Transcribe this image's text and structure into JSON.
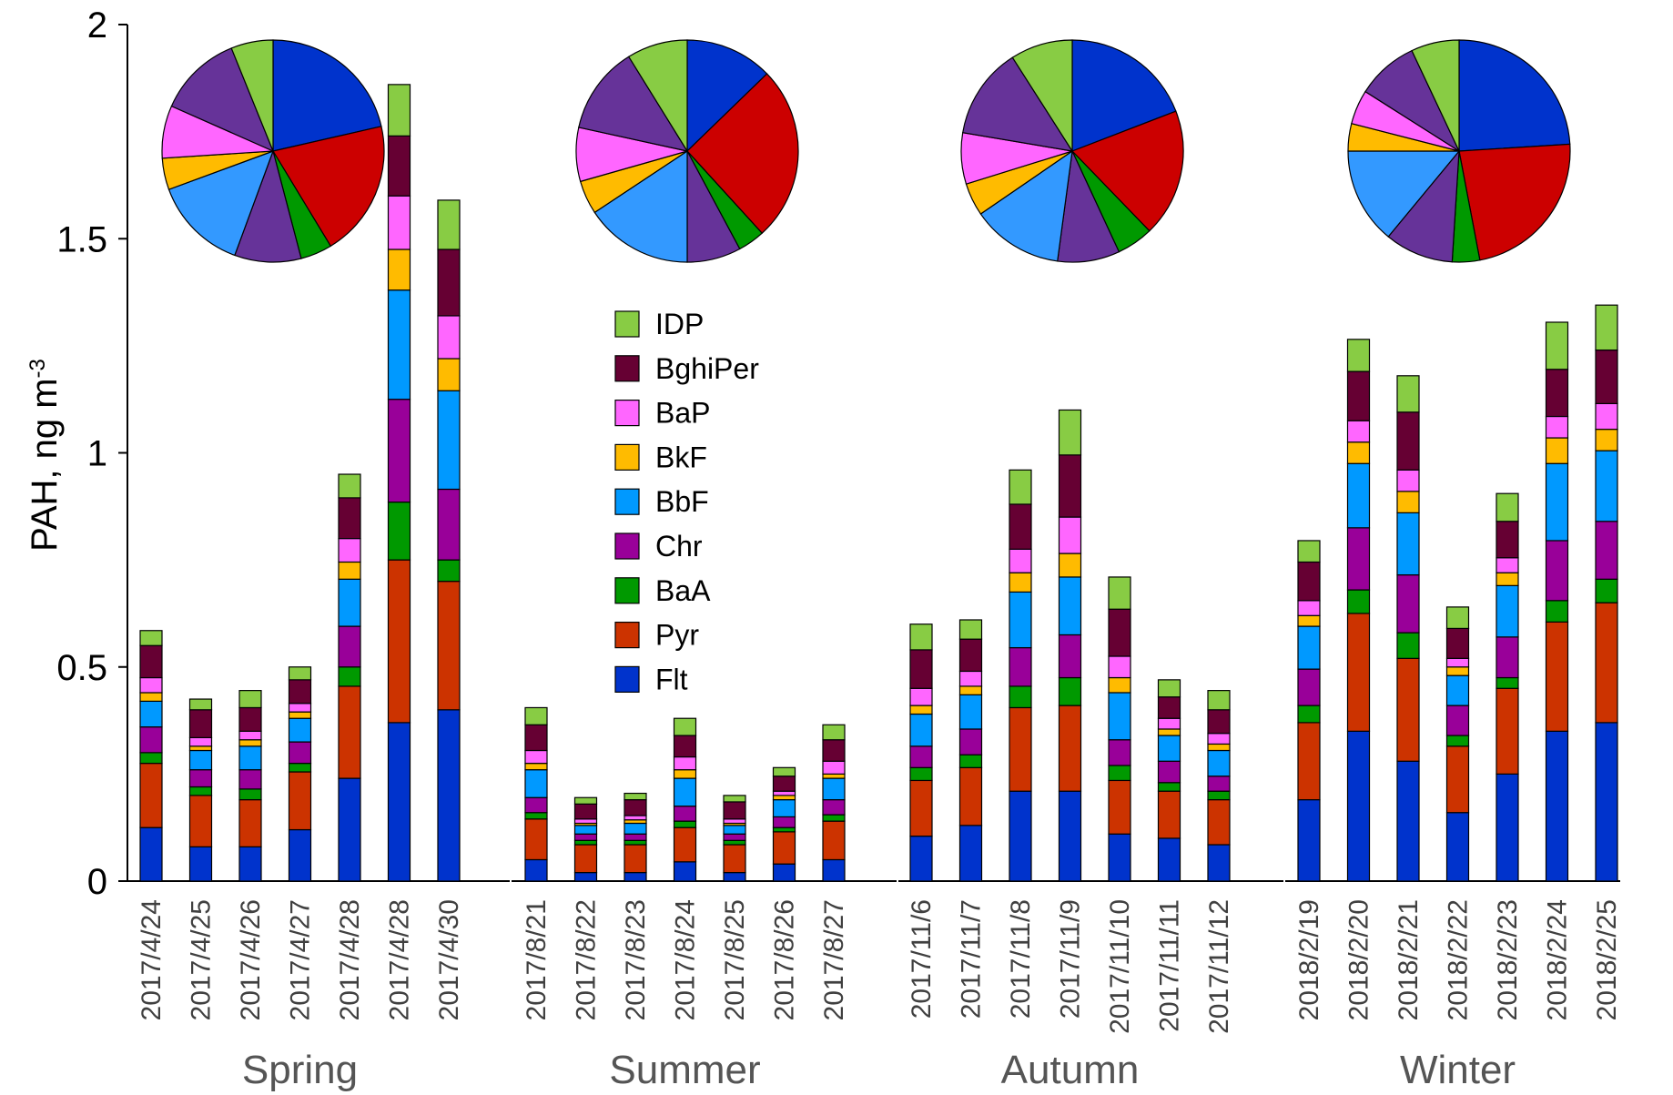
{
  "chart_data": {
    "type": "stacked-bar",
    "ylabel": "PAH, ng m",
    "ylabel_sup": "-3",
    "ylim": [
      0,
      2
    ],
    "yticks": [
      0,
      0.5,
      1,
      1.5,
      2
    ],
    "ytick_labels": [
      "0",
      "0.5",
      "1",
      "1.5",
      "2"
    ],
    "components": [
      {
        "name": "Flt",
        "color": "#0033cc"
      },
      {
        "name": "Pyr",
        "color": "#cc3300"
      },
      {
        "name": "BaA",
        "color": "#009900"
      },
      {
        "name": "Chr",
        "color": "#990099"
      },
      {
        "name": "BbF",
        "color": "#0099ff"
      },
      {
        "name": "BkF",
        "color": "#ffbb00"
      },
      {
        "name": "BaP",
        "color": "#ff66ff"
      },
      {
        "name": "BghiPer",
        "color": "#660033"
      },
      {
        "name": "IDP",
        "color": "#88cc44"
      }
    ],
    "legend_order": [
      "IDP",
      "BghiPer",
      "BaP",
      "BkF",
      "BbF",
      "Chr",
      "BaA",
      "Pyr",
      "Flt"
    ],
    "pie_colors": [
      "#0033cc",
      "#cc0000",
      "#009900",
      "#663399",
      "#3399ff",
      "#ffbb00",
      "#ff66ff",
      "#663399",
      "#88cc44"
    ],
    "seasons": [
      {
        "name": "Spring",
        "dates": [
          "2017/4/24",
          "2017/4/25",
          "2017/4/26",
          "2017/4/27",
          "2017/4/28",
          "2017/4/28",
          "2017/4/30"
        ],
        "bars": [
          [
            0.125,
            0.15,
            0.025,
            0.06,
            0.06,
            0.02,
            0.035,
            0.075,
            0.035
          ],
          [
            0.08,
            0.12,
            0.02,
            0.04,
            0.045,
            0.01,
            0.02,
            0.065,
            0.025
          ],
          [
            0.08,
            0.11,
            0.025,
            0.045,
            0.055,
            0.015,
            0.02,
            0.055,
            0.04
          ],
          [
            0.12,
            0.135,
            0.02,
            0.05,
            0.055,
            0.015,
            0.02,
            0.055,
            0.03
          ],
          [
            0.24,
            0.215,
            0.045,
            0.095,
            0.11,
            0.04,
            0.055,
            0.095,
            0.055
          ],
          [
            0.37,
            0.38,
            0.135,
            0.24,
            0.255,
            0.095,
            0.125,
            0.14,
            0.12
          ],
          [
            0.4,
            0.3,
            0.05,
            0.165,
            0.23,
            0.075,
            0.1,
            0.155,
            0.115
          ]
        ],
        "pie": [
          0.21,
          0.195,
          0.045,
          0.095,
          0.135,
          0.045,
          0.075,
          0.12,
          0.06
        ]
      },
      {
        "name": "Summer",
        "dates": [
          "2017/8/21",
          "2017/8/22",
          "2017/8/23",
          "2017/8/24",
          "2017/8/25",
          "2017/8/26",
          "2017/8/27"
        ],
        "bars": [
          [
            0.05,
            0.095,
            0.015,
            0.035,
            0.065,
            0.015,
            0.03,
            0.06,
            0.04
          ],
          [
            0.02,
            0.065,
            0.01,
            0.015,
            0.02,
            0.005,
            0.01,
            0.035,
            0.015
          ],
          [
            0.02,
            0.065,
            0.01,
            0.015,
            0.025,
            0.008,
            0.01,
            0.037,
            0.015
          ],
          [
            0.045,
            0.08,
            0.015,
            0.035,
            0.065,
            0.02,
            0.03,
            0.05,
            0.04
          ],
          [
            0.02,
            0.065,
            0.01,
            0.015,
            0.02,
            0.005,
            0.01,
            0.04,
            0.015
          ],
          [
            0.04,
            0.075,
            0.01,
            0.025,
            0.04,
            0.01,
            0.01,
            0.035,
            0.02
          ],
          [
            0.05,
            0.09,
            0.015,
            0.035,
            0.05,
            0.01,
            0.03,
            0.05,
            0.035
          ]
        ],
        "pie": [
          0.13,
          0.26,
          0.04,
          0.08,
          0.16,
          0.05,
          0.08,
          0.13,
          0.09
        ]
      },
      {
        "name": "Autumn",
        "dates": [
          "2017/11/6",
          "2017/11/7",
          "2017/11/8",
          "2017/11/9",
          "2017/11/10",
          "2017/11/11",
          "2017/11/12"
        ],
        "bars": [
          [
            0.105,
            0.13,
            0.03,
            0.05,
            0.075,
            0.02,
            0.04,
            0.09,
            0.06
          ],
          [
            0.13,
            0.135,
            0.03,
            0.06,
            0.08,
            0.02,
            0.035,
            0.075,
            0.045
          ],
          [
            0.21,
            0.195,
            0.05,
            0.09,
            0.13,
            0.045,
            0.055,
            0.105,
            0.08
          ],
          [
            0.21,
            0.2,
            0.065,
            0.1,
            0.135,
            0.055,
            0.085,
            0.145,
            0.105
          ],
          [
            0.11,
            0.125,
            0.035,
            0.06,
            0.11,
            0.035,
            0.05,
            0.11,
            0.075
          ],
          [
            0.1,
            0.11,
            0.02,
            0.05,
            0.06,
            0.015,
            0.025,
            0.05,
            0.04
          ],
          [
            0.085,
            0.105,
            0.02,
            0.035,
            0.06,
            0.015,
            0.025,
            0.055,
            0.045
          ]
        ],
        "pie": [
          0.18,
          0.175,
          0.05,
          0.085,
          0.125,
          0.045,
          0.07,
          0.125,
          0.085
        ]
      },
      {
        "name": "Winter",
        "dates": [
          "2018/2/19",
          "2018/2/20",
          "2018/2/21",
          "2018/2/22",
          "2018/2/23",
          "2018/2/24",
          "2018/2/25"
        ],
        "bars": [
          [
            0.19,
            0.18,
            0.04,
            0.085,
            0.1,
            0.025,
            0.035,
            0.09,
            0.05
          ],
          [
            0.35,
            0.275,
            0.055,
            0.145,
            0.15,
            0.05,
            0.05,
            0.115,
            0.075
          ],
          [
            0.28,
            0.24,
            0.06,
            0.135,
            0.145,
            0.05,
            0.05,
            0.135,
            0.085
          ],
          [
            0.16,
            0.155,
            0.025,
            0.07,
            0.07,
            0.02,
            0.02,
            0.07,
            0.05
          ],
          [
            0.25,
            0.2,
            0.025,
            0.095,
            0.12,
            0.03,
            0.035,
            0.085,
            0.065
          ],
          [
            0.35,
            0.255,
            0.05,
            0.14,
            0.18,
            0.06,
            0.05,
            0.11,
            0.11
          ],
          [
            0.37,
            0.28,
            0.055,
            0.135,
            0.165,
            0.05,
            0.06,
            0.125,
            0.105
          ]
        ],
        "pie": [
          0.24,
          0.23,
          0.04,
          0.1,
          0.14,
          0.04,
          0.05,
          0.09,
          0.07
        ]
      }
    ]
  }
}
